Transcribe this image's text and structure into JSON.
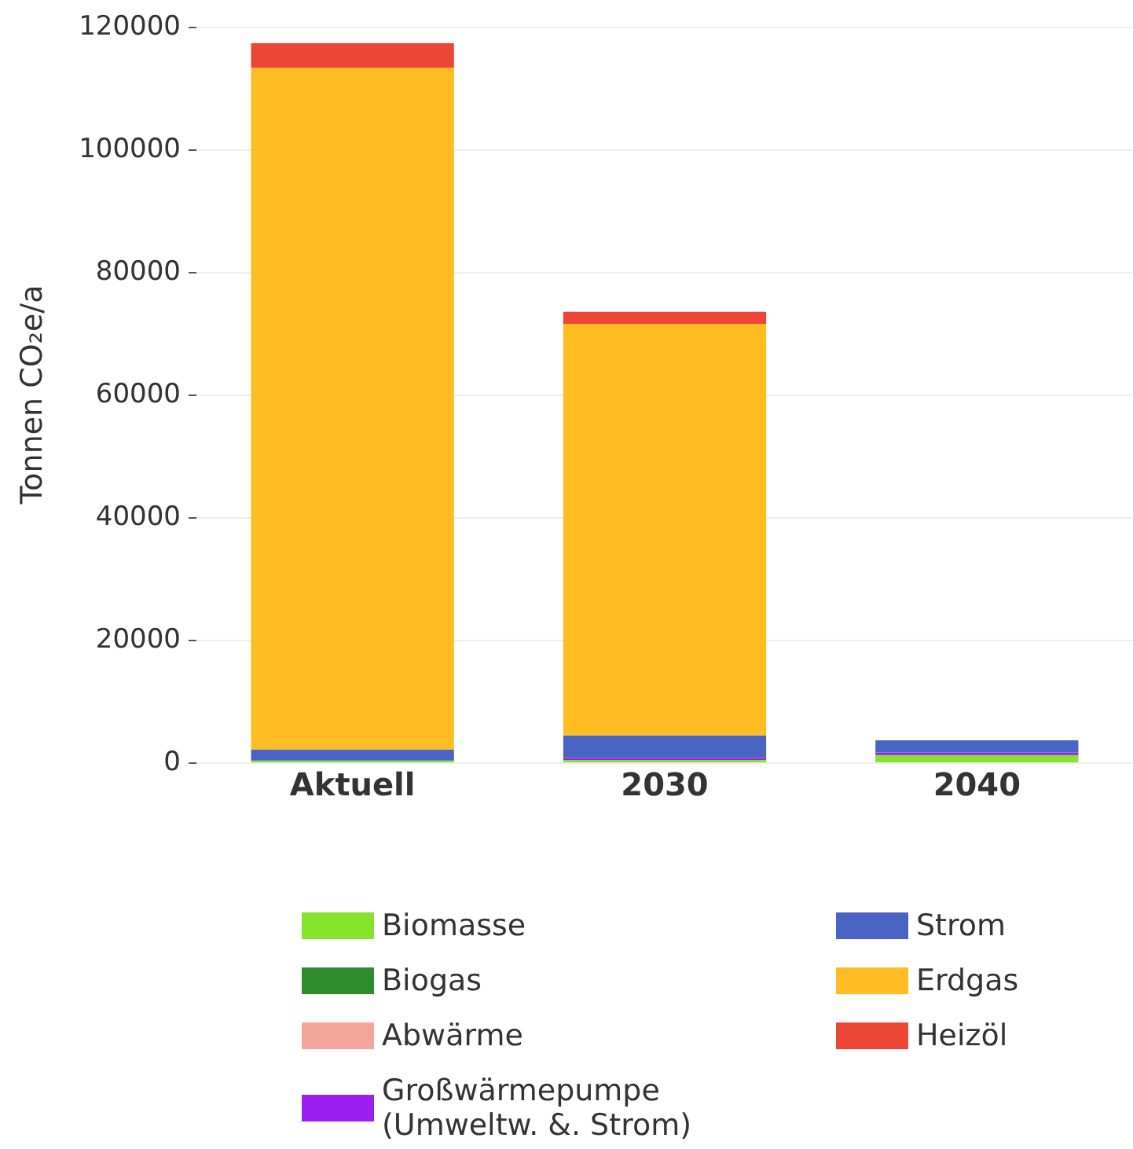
{
  "chart_data": {
    "type": "bar",
    "stacked": true,
    "ylabel": "Tonnen CO₂e/a",
    "categories": [
      "Aktuell",
      "2030",
      "2040"
    ],
    "series": [
      {
        "name": "Biomasse",
        "color": "#84e32b",
        "values": [
          300,
          400,
          1200
        ]
      },
      {
        "name": "Biogas",
        "color": "#2e8b2e",
        "values": [
          0,
          0,
          0
        ]
      },
      {
        "name": "Abwärme",
        "color": "#f4a59c",
        "values": [
          0,
          0,
          0
        ]
      },
      {
        "name": "Großwärmepumpe\n(Umweltw. &. Strom)",
        "color": "#9b1ff0",
        "values": [
          0,
          300,
          400
        ]
      },
      {
        "name": "Strom",
        "color": "#4a64c4",
        "values": [
          1800,
          3700,
          2000
        ]
      },
      {
        "name": "Erdgas",
        "color": "#ffbd22",
        "values": [
          111200,
          67100,
          0
        ]
      },
      {
        "name": "Heizöl",
        "color": "#ec4637",
        "values": [
          4000,
          2000,
          0
        ]
      }
    ],
    "ylim": [
      0,
      120000
    ],
    "yticks": [
      0,
      20000,
      40000,
      60000,
      80000,
      100000,
      120000
    ],
    "grid": "y",
    "legend": "bottom"
  }
}
